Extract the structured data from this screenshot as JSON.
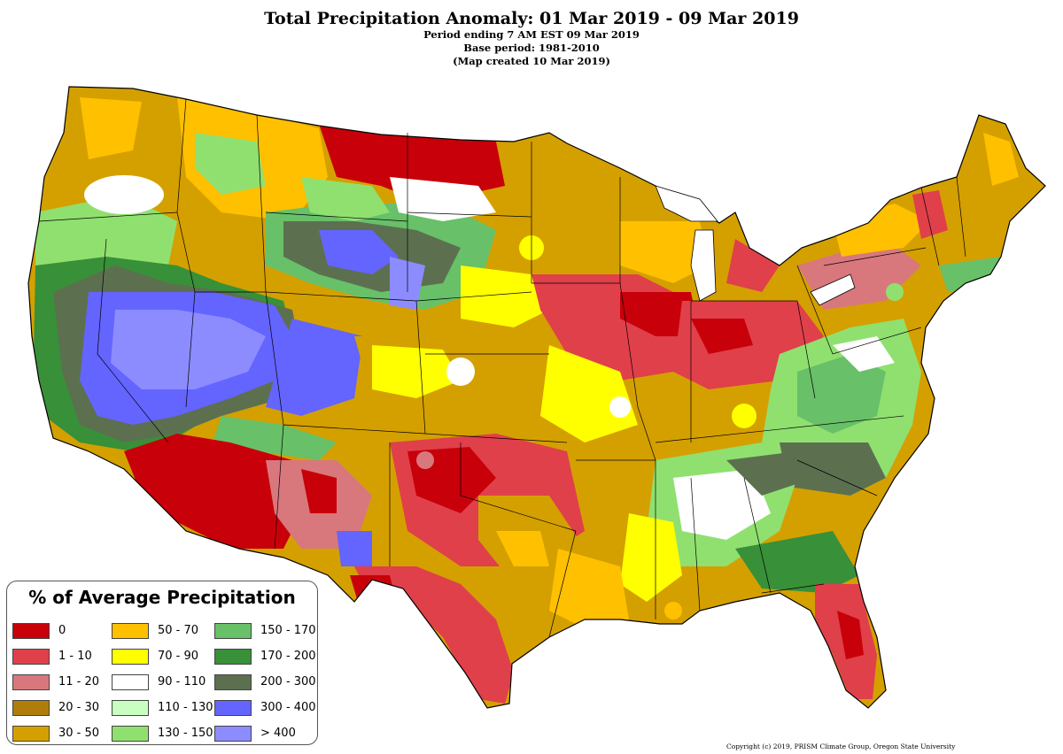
{
  "header": {
    "title": "Total Precipitation Anomaly: 01 Mar 2019 - 09 Mar 2019",
    "line1": "Period ending 7 AM EST 09 Mar 2019",
    "line2": "Base period: 1981-2010",
    "line3": "(Map created 10 Mar 2019)"
  },
  "legend": {
    "title": "% of Average Precipitation",
    "items": [
      {
        "label": "0",
        "color": "#c8000a"
      },
      {
        "label": "1 - 10",
        "color": "#e0404a"
      },
      {
        "label": "11 - 20",
        "color": "#d8787c"
      },
      {
        "label": "20 - 30",
        "color": "#b07c0c"
      },
      {
        "label": "30 - 50",
        "color": "#d4a000"
      },
      {
        "label": "50 - 70",
        "color": "#ffc000"
      },
      {
        "label": "70 - 90",
        "color": "#ffff00"
      },
      {
        "label": "90 - 110",
        "color": "#ffffff"
      },
      {
        "label": "110 - 130",
        "color": "#c8ffc0"
      },
      {
        "label": "130 - 150",
        "color": "#90e070"
      },
      {
        "label": "150 - 170",
        "color": "#68c068"
      },
      {
        "label": "170 - 200",
        "color": "#389038"
      },
      {
        "label": "200 - 300",
        "color": "#5c7050"
      },
      {
        "label": "300 - 400",
        "color": "#6464ff"
      },
      {
        "label": "> 400",
        "color": "#8c8cff"
      }
    ]
  },
  "copyright": "Copyright (c) 2019, PRISM Climate Group, Oregon State University"
}
